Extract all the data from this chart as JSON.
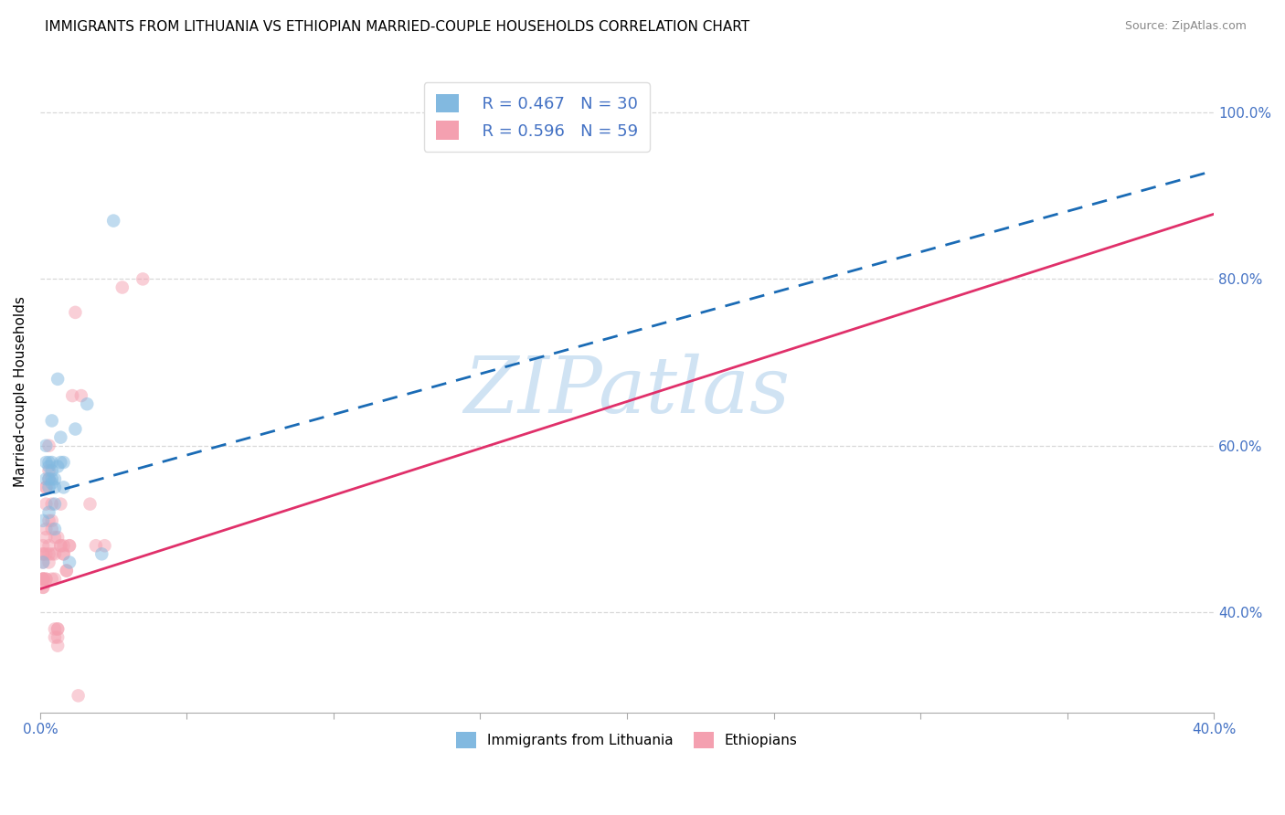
{
  "title": "IMMIGRANTS FROM LITHUANIA VS ETHIOPIAN MARRIED-COUPLE HOUSEHOLDS CORRELATION CHART",
  "source": "Source: ZipAtlas.com",
  "ylabel": "Married-couple Households",
  "legend_blue_r": "R = 0.467",
  "legend_blue_n": "N = 30",
  "legend_pink_r": "R = 0.596",
  "legend_pink_n": "N = 59",
  "legend_label_blue": "Immigrants from Lithuania",
  "legend_label_pink": "Ethiopians",
  "blue_color": "#82b9e0",
  "pink_color": "#f4a0b0",
  "blue_line_color": "#1a6bb5",
  "pink_line_color": "#e0306a",
  "watermark_zip": "ZIP",
  "watermark_atlas": "atlas",
  "blue_points": [
    [
      0.001,
      0.46
    ],
    [
      0.001,
      0.51
    ],
    [
      0.002,
      0.58
    ],
    [
      0.002,
      0.6
    ],
    [
      0.002,
      0.56
    ],
    [
      0.003,
      0.55
    ],
    [
      0.003,
      0.575
    ],
    [
      0.003,
      0.56
    ],
    [
      0.003,
      0.52
    ],
    [
      0.003,
      0.58
    ],
    [
      0.004,
      0.57
    ],
    [
      0.004,
      0.63
    ],
    [
      0.004,
      0.555
    ],
    [
      0.004,
      0.58
    ],
    [
      0.004,
      0.56
    ],
    [
      0.005,
      0.53
    ],
    [
      0.005,
      0.5
    ],
    [
      0.005,
      0.55
    ],
    [
      0.005,
      0.56
    ],
    [
      0.006,
      0.68
    ],
    [
      0.006,
      0.575
    ],
    [
      0.007,
      0.58
    ],
    [
      0.007,
      0.61
    ],
    [
      0.008,
      0.55
    ],
    [
      0.008,
      0.58
    ],
    [
      0.01,
      0.46
    ],
    [
      0.012,
      0.62
    ],
    [
      0.016,
      0.65
    ],
    [
      0.021,
      0.47
    ],
    [
      0.025,
      0.87
    ]
  ],
  "pink_points": [
    [
      0.001,
      0.44
    ],
    [
      0.001,
      0.46
    ],
    [
      0.001,
      0.47
    ],
    [
      0.001,
      0.44
    ],
    [
      0.001,
      0.44
    ],
    [
      0.001,
      0.43
    ],
    [
      0.001,
      0.44
    ],
    [
      0.001,
      0.43
    ],
    [
      0.001,
      0.48
    ],
    [
      0.001,
      0.47
    ],
    [
      0.002,
      0.44
    ],
    [
      0.002,
      0.44
    ],
    [
      0.002,
      0.47
    ],
    [
      0.002,
      0.49
    ],
    [
      0.002,
      0.55
    ],
    [
      0.002,
      0.55
    ],
    [
      0.002,
      0.5
    ],
    [
      0.002,
      0.53
    ],
    [
      0.003,
      0.51
    ],
    [
      0.003,
      0.48
    ],
    [
      0.003,
      0.56
    ],
    [
      0.003,
      0.57
    ],
    [
      0.003,
      0.6
    ],
    [
      0.003,
      0.46
    ],
    [
      0.003,
      0.47
    ],
    [
      0.004,
      0.51
    ],
    [
      0.004,
      0.44
    ],
    [
      0.004,
      0.47
    ],
    [
      0.004,
      0.5
    ],
    [
      0.004,
      0.53
    ],
    [
      0.005,
      0.37
    ],
    [
      0.005,
      0.38
    ],
    [
      0.005,
      0.49
    ],
    [
      0.005,
      0.44
    ],
    [
      0.005,
      0.47
    ],
    [
      0.006,
      0.49
    ],
    [
      0.006,
      0.37
    ],
    [
      0.006,
      0.38
    ],
    [
      0.006,
      0.36
    ],
    [
      0.006,
      0.38
    ],
    [
      0.007,
      0.48
    ],
    [
      0.007,
      0.48
    ],
    [
      0.007,
      0.53
    ],
    [
      0.008,
      0.47
    ],
    [
      0.008,
      0.47
    ],
    [
      0.008,
      0.48
    ],
    [
      0.009,
      0.45
    ],
    [
      0.009,
      0.45
    ],
    [
      0.01,
      0.48
    ],
    [
      0.01,
      0.48
    ],
    [
      0.011,
      0.66
    ],
    [
      0.012,
      0.76
    ],
    [
      0.013,
      0.3
    ],
    [
      0.014,
      0.66
    ],
    [
      0.017,
      0.53
    ],
    [
      0.019,
      0.48
    ],
    [
      0.022,
      0.48
    ],
    [
      0.028,
      0.79
    ],
    [
      0.035,
      0.8
    ]
  ],
  "xlim": [
    0.0,
    0.4
  ],
  "ylim": [
    0.28,
    1.05
  ],
  "ytick_positions": [
    0.4,
    0.6,
    0.8,
    1.0
  ],
  "ytick_labels": [
    "40.0%",
    "60.0%",
    "80.0%",
    "100.0%"
  ],
  "xtick_positions": [
    0.0,
    0.05,
    0.1,
    0.15,
    0.2,
    0.25,
    0.3,
    0.35,
    0.4
  ],
  "xtick_labels": [
    "0.0%",
    "",
    "",
    "",
    "",
    "",
    "",
    "",
    "40.0%"
  ],
  "blue_slope": 0.975,
  "blue_intercept": 0.54,
  "pink_slope": 1.125,
  "pink_intercept": 0.428,
  "grid_color": "#d8d8d8",
  "bg_color": "#ffffff",
  "label_color": "#4472c4",
  "title_fontsize": 11,
  "tick_fontsize": 11,
  "axis_fontsize": 11,
  "marker_size": 110,
  "marker_alpha": 0.5
}
